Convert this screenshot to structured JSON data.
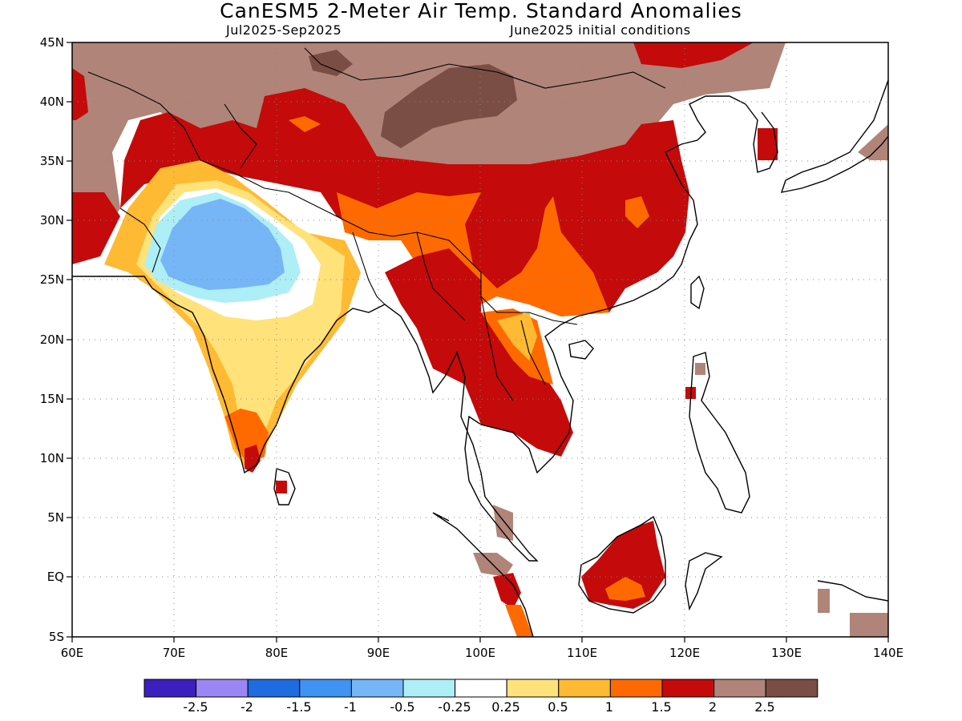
{
  "title": "CanESM5 2-Meter Air Temp. Standard Anomalies",
  "subtitle_left": "Jul2025-Sep2025",
  "subtitle_right": "June2025 initial conditions",
  "map": {
    "lon_range": [
      60,
      140
    ],
    "lat_range": [
      -5,
      45
    ],
    "x_ticks": [
      "60E",
      "70E",
      "80E",
      "90E",
      "100E",
      "110E",
      "120E",
      "130E",
      "140E"
    ],
    "y_ticks": [
      "45N",
      "40N",
      "35N",
      "30N",
      "25N",
      "20N",
      "15N",
      "10N",
      "5N",
      "EQ",
      "5S"
    ]
  },
  "colorbar": {
    "colors": [
      "#3b1fbf",
      "#9a86f5",
      "#1f6be0",
      "#3f93f2",
      "#76b6f7",
      "#aeeef7",
      "#ffffff",
      "#ffe27a",
      "#ffba33",
      "#ff6a00",
      "#c40a0a",
      "#b08478",
      "#7a4e44"
    ],
    "labels": [
      "-2.5",
      "-2",
      "-1.5",
      "-1",
      "-0.5",
      "-0.25",
      "0.25",
      "0.5",
      "1",
      "1.5",
      "2",
      "2.5"
    ]
  }
}
